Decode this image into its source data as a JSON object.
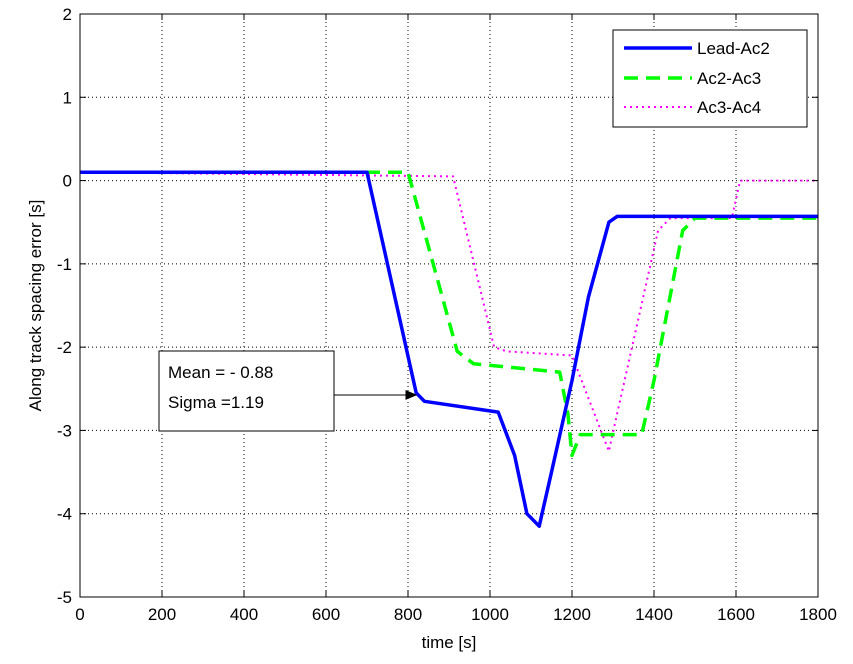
{
  "chart_data": {
    "type": "line",
    "title": "",
    "xlabel": "time [s]",
    "ylabel": "Along track spacing error [s]",
    "xlim": [
      0,
      1800
    ],
    "ylim": [
      -5,
      2
    ],
    "xticks": [
      0,
      200,
      400,
      600,
      800,
      1000,
      1200,
      1400,
      1600,
      1800
    ],
    "xtick_labels": [
      "0",
      "200",
      "400",
      "600",
      "800",
      "1000",
      "1200",
      "1400",
      "1600",
      "1800"
    ],
    "yticks": [
      -5,
      -4,
      -3,
      -2,
      -1,
      0,
      1,
      2
    ],
    "ytick_labels": [
      "-5",
      "-4",
      "-3",
      "-2",
      "-1",
      "0",
      "1",
      "2"
    ],
    "grid": true,
    "legend_position": "top-right",
    "series": [
      {
        "name": "Lead-Ac2",
        "color": "#0000ff",
        "style": "solid",
        "x": [
          0,
          700,
          820,
          840,
          1020,
          1060,
          1090,
          1120,
          1150,
          1200,
          1240,
          1290,
          1310,
          1800
        ],
        "y": [
          0.1,
          0.1,
          -2.55,
          -2.65,
          -2.78,
          -3.3,
          -4.0,
          -4.15,
          -3.5,
          -2.4,
          -1.4,
          -0.5,
          -0.43,
          -0.43
        ]
      },
      {
        "name": "Ac2-Ac3",
        "color": "#00ff00",
        "style": "dashed",
        "x": [
          0,
          800,
          920,
          960,
          1170,
          1190,
          1200,
          1220,
          1370,
          1400,
          1470,
          1500,
          1800
        ],
        "y": [
          0.1,
          0.1,
          -2.05,
          -2.2,
          -2.3,
          -2.8,
          -3.3,
          -3.05,
          -3.05,
          -2.4,
          -0.6,
          -0.45,
          -0.45
        ]
      },
      {
        "name": "Ac3-Ac4",
        "color": "#ff00ff",
        "style": "dotted",
        "x": [
          0,
          910,
          1010,
          1040,
          1200,
          1290,
          1310,
          1410,
          1440,
          1590,
          1610,
          1800
        ],
        "y": [
          0.1,
          0.05,
          -2.0,
          -2.05,
          -2.1,
          -3.25,
          -2.8,
          -0.6,
          -0.45,
          -0.45,
          0.0,
          0.0
        ]
      }
    ],
    "annotation": {
      "lines": [
        "Mean = - 0.88",
        "Sigma =1.19"
      ],
      "arrow_target": [
        830,
        -2.55
      ]
    }
  }
}
